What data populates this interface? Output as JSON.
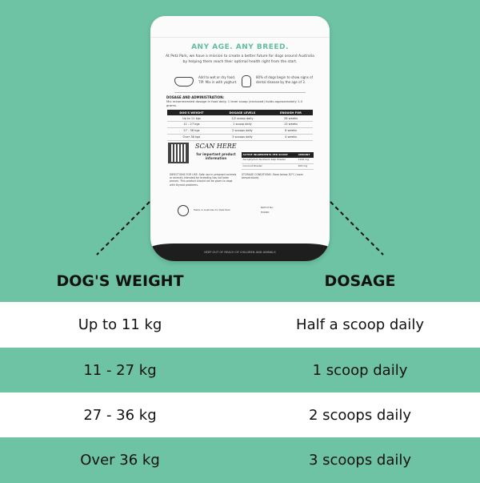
{
  "colors": {
    "background": "#6dc3a3",
    "accent": "#5fbf9c",
    "row_alt": "#ffffff"
  },
  "pouch": {
    "tagline": "ANY AGE. ANY BREED.",
    "intro": "At Petz Park, we have a mission to create a better future for dogs around Australia by helping them reach their optimal health right from the start.",
    "feature1": "Add to wet or dry food. TIP: Mix in with yoghurt.",
    "feature2": "80% of dogs begin to show signs of dental disease by the age of 3.",
    "dosage_heading": "DOSAGE AND ADMINISTRATION:",
    "dosage_sub": "Mix recommended dosage in food daily. 1 level scoop (enclosed) holds approximately 1.4 grams.",
    "table_headers": [
      "DOG'S WEIGHT",
      "DOSAGE LEVELS",
      "ENOUGH FOR"
    ],
    "table_rows": [
      [
        "Up to 11 kgs",
        "1/2 scoop daily",
        "28 weeks"
      ],
      [
        "11 - 27 kgs",
        "1 scoop daily",
        "13 weeks"
      ],
      [
        "27 - 36 kgs",
        "2 scoops daily",
        "6 weeks"
      ],
      [
        "Over 36 kgs",
        "3 scoops daily",
        "4 weeks"
      ]
    ],
    "scan_title": "SCAN HERE",
    "scan_sub": "for important product information",
    "ingredients_headers": [
      "ACTIVE INGREDIENTS PER SCOOP",
      "AMOUNT"
    ],
    "ingredients": [
      [
        "Ascophyllum Nodosum Kelp Powder",
        "1100 mg"
      ],
      [
        "Coconut Powder",
        "400 mg"
      ]
    ],
    "directions": "DIRECTIONS FOR USE: Safe use in pregnant animals or animals intended for breeding has not been proven. This product should not be given to dogs with thyroid problems.",
    "storage": "STORAGE CONDITIONS: Store below 30°C (room temperature).",
    "made_in": "Made in Australia for Petz Park",
    "batch": "BATCH No:",
    "expiry": "EXPIRY:",
    "footer": "KEEP OUT OF REACH OF CHILDREN AND ANIMALS"
  },
  "table": {
    "headers": [
      "DOG'S WEIGHT",
      "DOSAGE"
    ],
    "rows": [
      {
        "weight": "Up to 11 kg",
        "dosage": "Half a scoop daily"
      },
      {
        "weight": "11 - 27 kg",
        "dosage": "1 scoop daily"
      },
      {
        "weight": "27 - 36 kg",
        "dosage": "2 scoops daily"
      },
      {
        "weight": "Over 36 kg",
        "dosage": "3 scoops daily"
      }
    ]
  }
}
